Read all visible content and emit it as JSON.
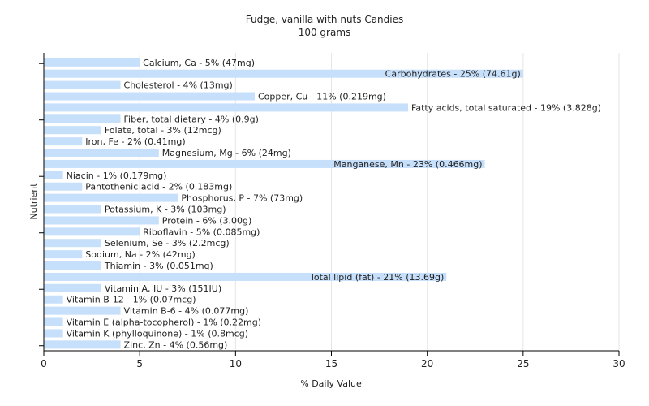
{
  "chart_data": {
    "type": "bar",
    "orientation": "horizontal",
    "title": "Fudge, vanilla with nuts Candies",
    "subtitle": "100 grams",
    "xlabel": "% Daily Value",
    "ylabel": "Nutrient",
    "xlim": [
      0,
      30
    ],
    "xticks": [
      0,
      5,
      10,
      15,
      20,
      25,
      30
    ],
    "grid": true,
    "bar_color": "#c6dffb",
    "categories": [
      "Calcium, Ca",
      "Carbohydrates",
      "Cholesterol",
      "Copper, Cu",
      "Fatty acids, total saturated",
      "Fiber, total dietary",
      "Folate, total",
      "Iron, Fe",
      "Magnesium, Mg",
      "Manganese, Mn",
      "Niacin",
      "Pantothenic acid",
      "Phosphorus, P",
      "Potassium, K",
      "Protein",
      "Riboflavin",
      "Selenium, Se",
      "Sodium, Na",
      "Thiamin",
      "Total lipid (fat)",
      "Vitamin A, IU",
      "Vitamin B-12",
      "Vitamin B-6",
      "Vitamin E (alpha-tocopherol)",
      "Vitamin K (phylloquinone)",
      "Zinc, Zn"
    ],
    "values": [
      5,
      25,
      4,
      11,
      19,
      4,
      3,
      2,
      6,
      23,
      1,
      2,
      7,
      3,
      6,
      5,
      3,
      2,
      3,
      21,
      3,
      1,
      4,
      1,
      1,
      4
    ],
    "labels": [
      "Calcium, Ca - 5% (47mg)",
      "Carbohydrates - 25% (74.61g)",
      "Cholesterol - 4% (13mg)",
      "Copper, Cu - 11% (0.219mg)",
      "Fatty acids, total saturated - 19% (3.828g)",
      "Fiber, total dietary - 4% (0.9g)",
      "Folate, total - 3% (12mcg)",
      "Iron, Fe - 2% (0.41mg)",
      "Magnesium, Mg - 6% (24mg)",
      "Manganese, Mn - 23% (0.466mg)",
      "Niacin - 1% (0.179mg)",
      "Pantothenic acid - 2% (0.183mg)",
      "Phosphorus, P - 7% (73mg)",
      "Potassium, K - 3% (103mg)",
      "Protein - 6% (3.00g)",
      "Riboflavin - 5% (0.085mg)",
      "Selenium, Se - 3% (2.2mcg)",
      "Sodium, Na - 2% (42mg)",
      "Thiamin - 3% (0.051mg)",
      "Total lipid (fat) - 21% (13.69g)",
      "Vitamin A, IU - 3% (151IU)",
      "Vitamin B-12 - 1% (0.07mcg)",
      "Vitamin B-6 - 4% (0.077mg)",
      "Vitamin E (alpha-tocopherol) - 1% (0.22mg)",
      "Vitamin K (phylloquinone) - 1% (0.8mcg)",
      "Zinc, Zn - 4% (0.56mg)"
    ]
  }
}
